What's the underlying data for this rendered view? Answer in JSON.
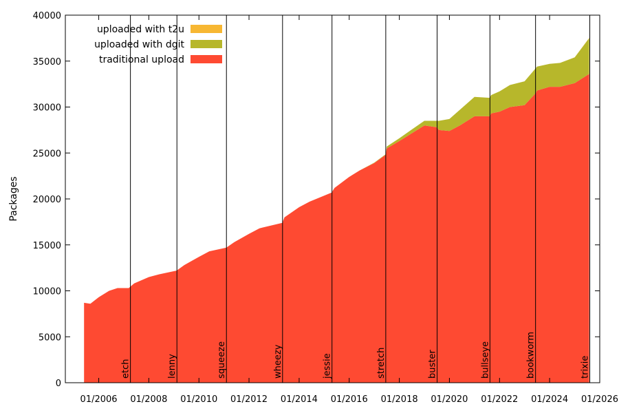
{
  "chart_data": {
    "type": "area",
    "stacked": true,
    "title": "",
    "xlabel": "",
    "ylabel": "Packages",
    "xlim": [
      "2004-09-01",
      "2026-01-01"
    ],
    "ylim": [
      0,
      40000
    ],
    "yticks": [
      0,
      5000,
      10000,
      15000,
      20000,
      25000,
      30000,
      35000,
      40000
    ],
    "xticks": [
      "01/2006",
      "01/2008",
      "01/2010",
      "01/2012",
      "01/2014",
      "01/2016",
      "01/2018",
      "01/2020",
      "01/2022",
      "01/2024",
      "01/2026"
    ],
    "grid": false,
    "legend_position": "top-left",
    "x": [
      "2005-06-01",
      "2005-09-01",
      "2006-01-01",
      "2006-06-01",
      "2006-10-01",
      "2007-03-15",
      "2007-06-01",
      "2008-01-01",
      "2008-06-01",
      "2009-02-10",
      "2009-06-01",
      "2010-01-01",
      "2010-06-01",
      "2011-02-05",
      "2011-06-01",
      "2012-01-01",
      "2012-06-01",
      "2013-05-01",
      "2013-06-01",
      "2014-01-01",
      "2014-06-01",
      "2015-04-20",
      "2015-06-01",
      "2016-01-01",
      "2016-06-01",
      "2017-01-01",
      "2017-06-15",
      "2017-07-01",
      "2018-01-01",
      "2018-06-01",
      "2019-01-01",
      "2019-07-05",
      "2019-08-01",
      "2020-01-01",
      "2020-06-01",
      "2021-01-01",
      "2021-08-10",
      "2021-09-01",
      "2022-01-01",
      "2022-06-01",
      "2023-01-01",
      "2023-06-10",
      "2023-07-01",
      "2024-01-01",
      "2024-06-01",
      "2025-01-01",
      "2025-08-01"
    ],
    "series": [
      {
        "name": "traditional upload",
        "color": "#fe4a32",
        "values": [
          8700,
          8600,
          9300,
          10000,
          10300,
          10300,
          10800,
          11500,
          11800,
          12200,
          12800,
          13700,
          14300,
          14700,
          15300,
          16200,
          16800,
          17400,
          18000,
          19100,
          19700,
          20700,
          21200,
          22400,
          23100,
          23900,
          24800,
          25500,
          26300,
          27000,
          28000,
          27800,
          27500,
          27400,
          28000,
          29000,
          29000,
          29300,
          29500,
          30000,
          30200,
          31500,
          31800,
          32200,
          32200,
          32600,
          33600
        ]
      },
      {
        "name": "uploaded with dgit",
        "color": "#b7b72b",
        "values": [
          0,
          0,
          0,
          0,
          0,
          0,
          0,
          0,
          0,
          0,
          0,
          0,
          0,
          0,
          0,
          0,
          0,
          0,
          0,
          0,
          0,
          0,
          0,
          0,
          0,
          50,
          60,
          200,
          300,
          400,
          500,
          700,
          1000,
          1300,
          1700,
          2100,
          2000,
          2000,
          2200,
          2400,
          2600,
          2700,
          2600,
          2500,
          2600,
          2800,
          3900
        ]
      },
      {
        "name": "uploaded with t2u",
        "color": "#f7b732",
        "values": [
          0,
          0,
          0,
          0,
          0,
          0,
          0,
          0,
          0,
          0,
          0,
          0,
          0,
          0,
          0,
          0,
          0,
          0,
          0,
          0,
          0,
          0,
          0,
          0,
          0,
          0,
          0,
          0,
          0,
          0,
          0,
          0,
          0,
          0,
          0,
          0,
          0,
          0,
          0,
          0,
          0,
          0,
          0,
          0,
          0,
          10,
          30
        ]
      }
    ],
    "legend": [
      "uploaded with t2u",
      "uploaded with dgit",
      "traditional upload"
    ],
    "releases": [
      {
        "name": "etch",
        "date": "2007-04-08"
      },
      {
        "name": "lenny",
        "date": "2009-02-14"
      },
      {
        "name": "squeeze",
        "date": "2011-02-06"
      },
      {
        "name": "wheezy",
        "date": "2013-05-04"
      },
      {
        "name": "jessie",
        "date": "2015-04-25"
      },
      {
        "name": "stretch",
        "date": "2017-06-17"
      },
      {
        "name": "buster",
        "date": "2019-07-06"
      },
      {
        "name": "bullseye",
        "date": "2021-08-14"
      },
      {
        "name": "bookworm",
        "date": "2023-06-10"
      },
      {
        "name": "trixie",
        "date": "2025-08-09"
      }
    ]
  }
}
